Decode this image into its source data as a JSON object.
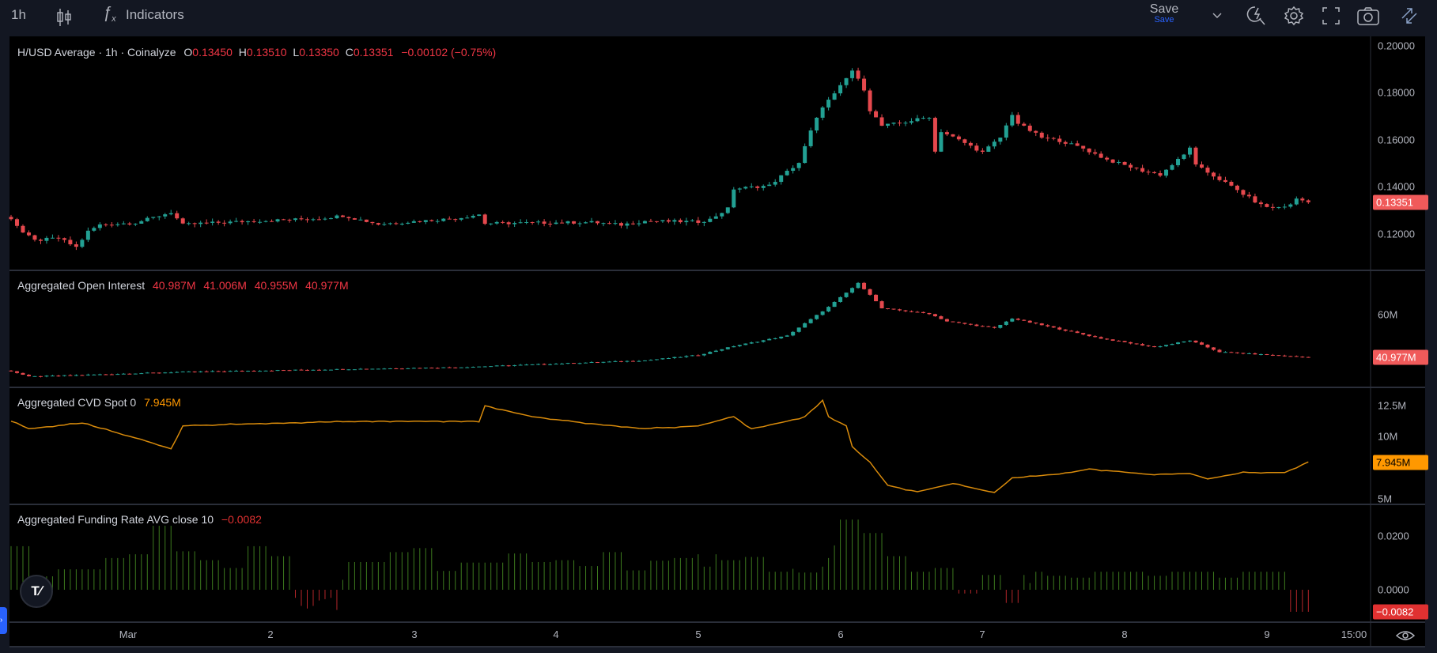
{
  "toolbar": {
    "interval": "1h",
    "indicators_label": "Indicators",
    "save_label": "Save",
    "save_sub_label": "Save"
  },
  "legends": {
    "price": {
      "title": "H/USD Average · 1h · Coinalyze",
      "o_label": "O",
      "o": "0.13450",
      "h_label": "H",
      "h": "0.13510",
      "l_label": "L",
      "l": "0.13350",
      "c_label": "C",
      "c": "0.13351",
      "change": "−0.00102 (−0.75%)"
    },
    "oi": {
      "title": "Aggregated Open Interest",
      "o": "40.987M",
      "h": "41.006M",
      "l": "40.955M",
      "c": "40.977M"
    },
    "cvd": {
      "title": "Aggregated CVD Spot 0",
      "value": "7.945M"
    },
    "funding": {
      "title": "Aggregated Funding Rate AVG close 10",
      "value": "−0.0082"
    }
  },
  "axes": {
    "price_ticks": [
      "0.20000",
      "0.18000",
      "0.16000",
      "0.14000",
      "0.12000"
    ],
    "price_badge": "0.13351",
    "oi_ticks": [
      "60M"
    ],
    "oi_badge": "40.977M",
    "cvd_ticks": [
      "12.5M",
      "10M",
      "5M"
    ],
    "cvd_badge": "7.945M",
    "funding_ticks": [
      "0.0200",
      "0.0000"
    ],
    "funding_badge": "−0.0082",
    "time_labels": [
      "Mar",
      "2",
      "3",
      "4",
      "5",
      "6",
      "7",
      "8",
      "9",
      "15:00"
    ]
  },
  "colors": {
    "up": "#22a093",
    "down": "#e5484d",
    "cvd": "#d98b0b",
    "fund_up": "#3d7a1e",
    "fund_down": "#b3262a",
    "oi_badge": "#f05a5a",
    "cvd_badge": "#ff9800",
    "fund_badge": "#e03131"
  },
  "chart_data": [
    {
      "type": "candlestick",
      "title": "H/USD Average · 1h · Coinalyze",
      "interval": "1h",
      "count": 220,
      "ylim": [
        0.1,
        0.2
      ],
      "close_keypoints": [
        [
          0,
          0.1267
        ],
        [
          2,
          0.1206
        ],
        [
          4,
          0.1172
        ],
        [
          8,
          0.1183
        ],
        [
          11,
          0.1144
        ],
        [
          13,
          0.1211
        ],
        [
          15,
          0.1239
        ],
        [
          21,
          0.1248
        ],
        [
          27,
          0.1292
        ],
        [
          29,
          0.1239
        ],
        [
          32,
          0.1245
        ],
        [
          41,
          0.1255
        ],
        [
          52,
          0.1266
        ],
        [
          56,
          0.1278
        ],
        [
          62,
          0.1242
        ],
        [
          75,
          0.1266
        ],
        [
          79,
          0.1283
        ],
        [
          80,
          0.1245
        ],
        [
          90,
          0.1248
        ],
        [
          98,
          0.125
        ],
        [
          103,
          0.1239
        ],
        [
          107,
          0.1255
        ],
        [
          116,
          0.1252
        ],
        [
          118,
          0.1262
        ],
        [
          121,
          0.1308
        ],
        [
          122,
          0.1392
        ],
        [
          128,
          0.1406
        ],
        [
          130,
          0.1446
        ],
        [
          133,
          0.1503
        ],
        [
          135,
          0.1637
        ],
        [
          137,
          0.1743
        ],
        [
          139,
          0.1794
        ],
        [
          142,
          0.1895
        ],
        [
          144,
          0.1816
        ],
        [
          145,
          0.1727
        ],
        [
          147,
          0.166
        ],
        [
          151,
          0.1676
        ],
        [
          155,
          0.1699
        ],
        [
          156,
          0.155
        ],
        [
          157,
          0.1637
        ],
        [
          161,
          0.1587
        ],
        [
          164,
          0.1547
        ],
        [
          167,
          0.161
        ],
        [
          169,
          0.171
        ],
        [
          170,
          0.167
        ],
        [
          174,
          0.161
        ],
        [
          177,
          0.1597
        ],
        [
          181,
          0.1564
        ],
        [
          185,
          0.1516
        ],
        [
          191,
          0.1469
        ],
        [
          194,
          0.1452
        ],
        [
          198,
          0.1536
        ],
        [
          199,
          0.157
        ],
        [
          200,
          0.1491
        ],
        [
          205,
          0.1418
        ],
        [
          208,
          0.137
        ],
        [
          211,
          0.1323
        ],
        [
          213,
          0.131
        ],
        [
          216,
          0.1323
        ],
        [
          217,
          0.1351
        ],
        [
          219,
          0.13351
        ]
      ]
    },
    {
      "type": "candlestick",
      "title": "Aggregated Open Interest",
      "unit": "M",
      "keypoints": [
        [
          0,
          34.9
        ],
        [
          3,
          32.4
        ],
        [
          29,
          34.5
        ],
        [
          76,
          36.6
        ],
        [
          107,
          39.6
        ],
        [
          116,
          42
        ],
        [
          122,
          46
        ],
        [
          131,
          50.6
        ],
        [
          138,
          63.4
        ],
        [
          143,
          74
        ],
        [
          145,
          69
        ],
        [
          147,
          62.8
        ],
        [
          155,
          60.4
        ],
        [
          158,
          57
        ],
        [
          166,
          54
        ],
        [
          169,
          58.3
        ],
        [
          184,
          49.4
        ],
        [
          193,
          45.5
        ],
        [
          199,
          48.5
        ],
        [
          204,
          43.4
        ],
        [
          219,
          40.977
        ]
      ]
    },
    {
      "type": "line",
      "title": "Aggregated CVD Spot 0",
      "unit": "M",
      "keypoints": [
        [
          0,
          11.22
        ],
        [
          3,
          10.62
        ],
        [
          12,
          11.07
        ],
        [
          22,
          9.74
        ],
        [
          27,
          9.0
        ],
        [
          29,
          10.85
        ],
        [
          45,
          11.07
        ],
        [
          60,
          11.22
        ],
        [
          79,
          11.22
        ],
        [
          80,
          12.47
        ],
        [
          88,
          11.59
        ],
        [
          97,
          11.07
        ],
        [
          107,
          10.62
        ],
        [
          116,
          10.85
        ],
        [
          122,
          11.59
        ],
        [
          125,
          10.62
        ],
        [
          131,
          11.22
        ],
        [
          134,
          11.59
        ],
        [
          137,
          12.91
        ],
        [
          138,
          11.59
        ],
        [
          141,
          10.85
        ],
        [
          142,
          9.15
        ],
        [
          145,
          7.9
        ],
        [
          148,
          6.05
        ],
        [
          153,
          5.54
        ],
        [
          159,
          6.2
        ],
        [
          166,
          5.46
        ],
        [
          169,
          6.64
        ],
        [
          178,
          7.01
        ],
        [
          182,
          7.38
        ],
        [
          192,
          6.94
        ],
        [
          199,
          7.01
        ],
        [
          202,
          6.57
        ],
        [
          208,
          7.08
        ],
        [
          215,
          7.08
        ],
        [
          219,
          7.945
        ]
      ]
    },
    {
      "type": "bar",
      "title": "Aggregated Funding Rate AVG close 10",
      "groups": [
        [
          4,
          0.0162
        ],
        [
          4,
          0.005
        ],
        [
          8,
          0.0076
        ],
        [
          4,
          0.0118
        ],
        [
          4,
          0.0132
        ],
        [
          4,
          0.0238
        ],
        [
          4,
          0.0143
        ],
        [
          4,
          0.011
        ],
        [
          4,
          0.0081
        ],
        [
          4,
          0.0162
        ],
        [
          4,
          0.0125
        ],
        [
          1,
          -0.003
        ],
        [
          1,
          -0.006
        ],
        [
          1,
          -0.007
        ],
        [
          1,
          -0.006
        ],
        [
          1,
          -0.004
        ],
        [
          1,
          -0.0035
        ],
        [
          1,
          -0.003
        ],
        [
          1,
          -0.0075
        ],
        [
          1,
          0.0037
        ],
        [
          7,
          0.0103
        ],
        [
          4,
          0.014
        ],
        [
          4,
          0.0155
        ],
        [
          4,
          0.007
        ],
        [
          8,
          0.0101
        ],
        [
          4,
          0.0135
        ],
        [
          4,
          0.0103
        ],
        [
          4,
          0.011
        ],
        [
          4,
          0.0088
        ],
        [
          4,
          0.014
        ],
        [
          4,
          0.0072
        ],
        [
          4,
          0.0108
        ],
        [
          4,
          0.0118
        ],
        [
          1,
          0.0132
        ],
        [
          2,
          0.0086
        ],
        [
          1,
          0.0132
        ],
        [
          4,
          0.011
        ],
        [
          4,
          0.0122
        ],
        [
          4,
          0.0067
        ],
        [
          1,
          0.0078
        ],
        [
          4,
          0.0064
        ],
        [
          1,
          0.0086
        ],
        [
          1,
          0.0118
        ],
        [
          1,
          0.0165
        ],
        [
          4,
          0.0261
        ],
        [
          4,
          0.0211
        ],
        [
          4,
          0.0125
        ],
        [
          4,
          0.0067
        ],
        [
          4,
          0.0081
        ],
        [
          4,
          -0.0014
        ],
        [
          4,
          0.0055
        ],
        [
          3,
          -0.0049
        ],
        [
          1,
          0.0055
        ],
        [
          1,
          0.0025
        ],
        [
          2,
          0.0067
        ],
        [
          4,
          0.0052
        ],
        [
          4,
          0.0045
        ],
        [
          9,
          0.0067
        ],
        [
          4,
          0.0052
        ],
        [
          8,
          0.0067
        ],
        [
          4,
          0.0045
        ],
        [
          8,
          0.0067
        ],
        [
          4,
          -0.0082
        ]
      ]
    }
  ]
}
